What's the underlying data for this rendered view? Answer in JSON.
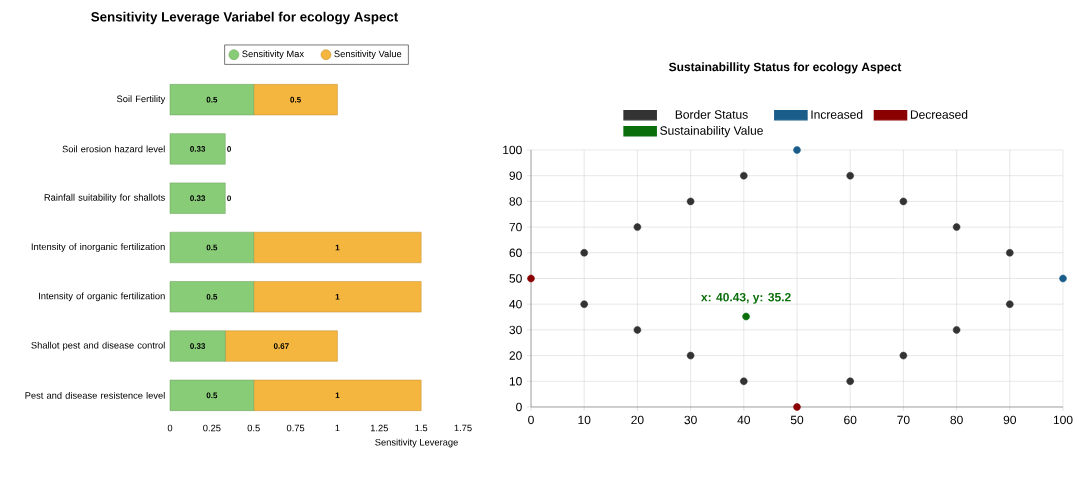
{
  "chart_data": [
    {
      "type": "bar",
      "orientation": "horizontal",
      "stacked": true,
      "title": "Sensitivity Leverage Variabel for ecology Aspect",
      "xlabel": "Sensitivity Leverage",
      "categories": [
        "Soil Fertility",
        "Soil erosion hazard level",
        "Rainfall suitability for shallots",
        "Intensity of inorganic fertilization",
        "Intensity of organic fertilization",
        "Shallot pest and disease control",
        "Pest and disease resistence level"
      ],
      "series": [
        {
          "name": "Sensitivity Max",
          "color": "#88cc77",
          "values": [
            0.5,
            0.33,
            0.33,
            0.5,
            0.5,
            0.33,
            0.5
          ]
        },
        {
          "name": "Sensitivity Value",
          "color": "#f5b640",
          "values": [
            0.5,
            0,
            0,
            1,
            1,
            0.67,
            1
          ]
        }
      ],
      "xlim": [
        0,
        1.75
      ],
      "xticks": [
        0,
        0.25,
        0.5,
        0.75,
        1,
        1.25,
        1.5,
        1.75
      ],
      "data_labels": true,
      "legend": "top"
    },
    {
      "type": "scatter",
      "title": "Sustainabillity Status for ecology Aspect",
      "marker": "circle",
      "grid": true,
      "legend": "top",
      "series": [
        {
          "name": "Border Status",
          "color": "#333333",
          "x": [
            10,
            20,
            30,
            40,
            60,
            70,
            80,
            90,
            90,
            80,
            70,
            60,
            40,
            30,
            20,
            10
          ],
          "values": [
            60,
            70,
            80,
            90,
            90,
            80,
            70,
            60,
            40,
            30,
            20,
            10,
            10,
            20,
            30,
            40
          ]
        },
        {
          "name": "Increased",
          "color": "#1a5c8a",
          "x": [
            50,
            100
          ],
          "values": [
            100,
            50
          ]
        },
        {
          "name": "Decreased",
          "color": "#8b0000",
          "x": [
            0,
            50
          ],
          "values": [
            50,
            0
          ]
        },
        {
          "name": "Sustainability Value",
          "color": "#0a6e0a",
          "x": [
            40.43
          ],
          "values": [
            35.2
          ]
        }
      ],
      "xlim": [
        0,
        100
      ],
      "ylim": [
        0,
        100
      ],
      "xticks": [
        0,
        10,
        20,
        30,
        40,
        50,
        60,
        70,
        80,
        90,
        100
      ],
      "yticks": [
        0,
        10,
        20,
        30,
        40,
        50,
        60,
        70,
        80,
        90,
        100
      ],
      "annotations": [
        {
          "text": "x: 40.43, y: 35.2",
          "x": 40.43,
          "y": 35.2
        }
      ]
    }
  ]
}
